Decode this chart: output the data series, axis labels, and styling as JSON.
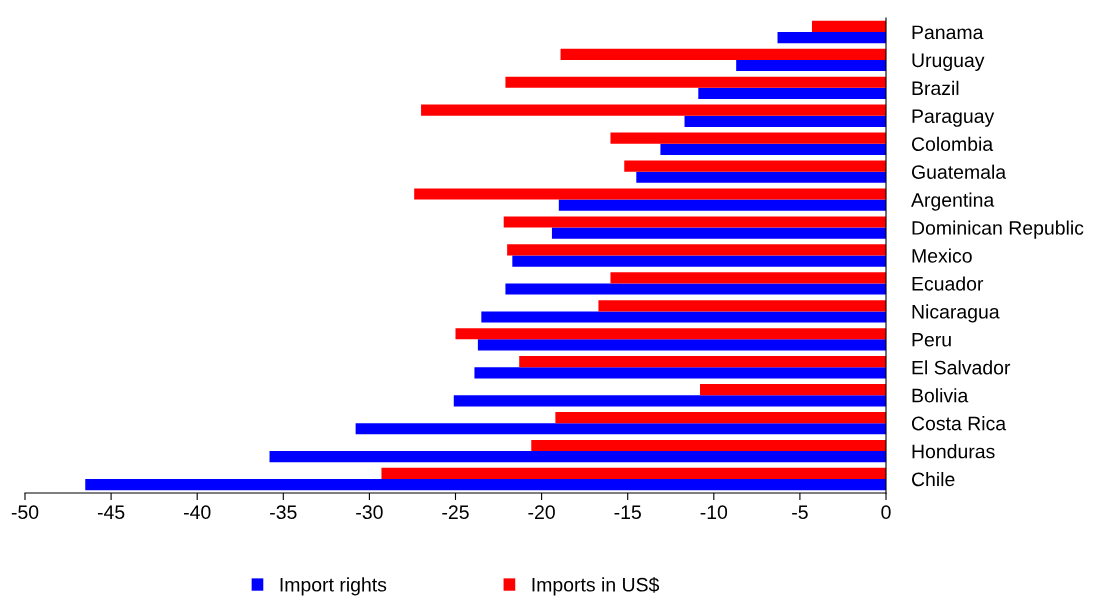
{
  "chart_data": {
    "type": "bar",
    "orientation": "horizontal",
    "categories": [
      "Panama",
      "Uruguay",
      "Brazil",
      "Paraguay",
      "Colombia",
      "Guatemala",
      "Argentina",
      "Dominican Republic",
      "Mexico",
      "Ecuador",
      "Nicaragua",
      "Peru",
      "El Salvador",
      "Bolivia",
      "Costa Rica",
      "Honduras",
      "Chile"
    ],
    "series": [
      {
        "name": "Import rights",
        "color": "#0000ff",
        "values": [
          -6.3,
          -8.7,
          -10.9,
          -11.7,
          -13.1,
          -14.5,
          -19.0,
          -19.4,
          -21.7,
          -22.1,
          -23.5,
          -23.7,
          -23.9,
          -25.1,
          -30.8,
          -35.8,
          -46.5
        ]
      },
      {
        "name": "Imports in US$",
        "color": "#ff0000",
        "values": [
          -4.3,
          -18.9,
          -22.1,
          -27.0,
          -16.0,
          -15.2,
          -27.4,
          -22.2,
          -22.0,
          -16.0,
          -16.7,
          -25.0,
          -21.3,
          -10.8,
          -19.2,
          -20.6,
          -29.3
        ]
      }
    ],
    "xlim": [
      -50,
      0
    ],
    "xticks": [
      -50,
      -45,
      -40,
      -35,
      -30,
      -25,
      -20,
      -15,
      -10,
      -5,
      0
    ],
    "grid": false,
    "legend": "bottom"
  }
}
